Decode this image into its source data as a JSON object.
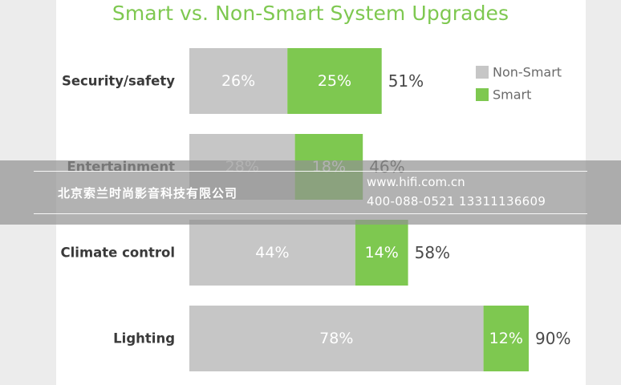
{
  "colors": {
    "non_smart": "#c6c6c6",
    "smart": "#7ec850",
    "title": "#7ec850"
  },
  "chart_data": {
    "type": "bar",
    "orientation": "horizontal",
    "stacked": true,
    "title": "Smart vs. Non-Smart System Upgrades",
    "categories": [
      "Security/safety",
      "Entertainment",
      "Climate control",
      "Lighting"
    ],
    "series": [
      {
        "name": "Non-Smart",
        "values": [
          26,
          28,
          44,
          78
        ],
        "labels": [
          "26%",
          "28%",
          "44%",
          "78%"
        ]
      },
      {
        "name": "Smart",
        "values": [
          25,
          18,
          14,
          12
        ],
        "labels": [
          "25%",
          "18%",
          "14%",
          "12%"
        ]
      }
    ],
    "totals": [
      51,
      46,
      58,
      90
    ],
    "total_labels": [
      "51%",
      "46%",
      "58%",
      "90%"
    ],
    "xlim": [
      0,
      100
    ],
    "grid": false,
    "legend": {
      "position": "top-right",
      "entries": [
        "Non-Smart",
        "Smart"
      ]
    }
  },
  "watermark": {
    "company": "北京索兰时尚影音科技有限公司",
    "website": "www.hifi.com.cn",
    "phone": "400-088-0521  13311136609"
  }
}
